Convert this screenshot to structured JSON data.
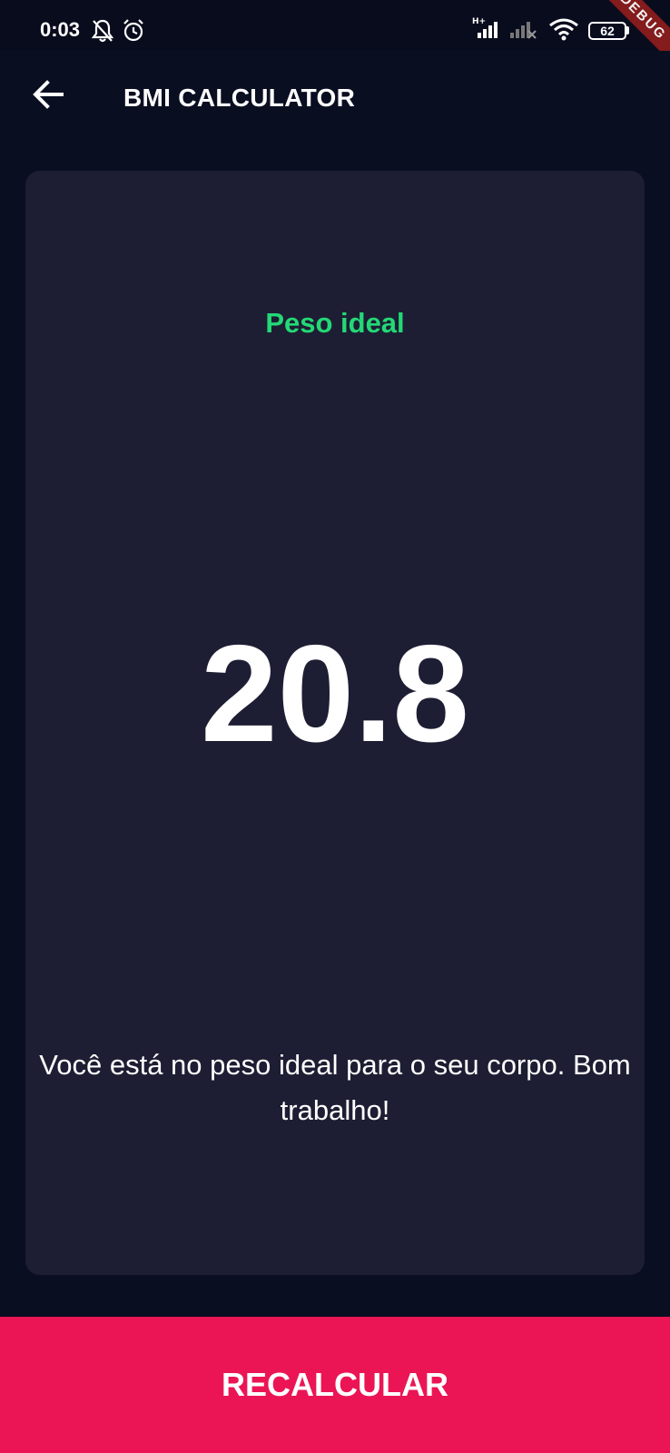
{
  "status_bar": {
    "time": "0:03",
    "battery_level": "62",
    "network_type": "H+",
    "icons": [
      "notifications-off-icon",
      "alarm-icon",
      "signal-icon",
      "signal-no-service-icon",
      "wifi-icon",
      "battery-icon"
    ]
  },
  "debug_banner": "DEBUG",
  "app_bar": {
    "title": "BMI CALCULATOR",
    "back_icon": "arrow-back-icon"
  },
  "result": {
    "status": "Peso ideal",
    "bmi": "20.8",
    "interpretation": "Você está no peso ideal para o seu corpo. Bom trabalho!"
  },
  "bottom_button": {
    "label": "RECALCULAR"
  },
  "colors": {
    "background": "#0a0e21",
    "card": "#1d1e33",
    "status_green": "#24d876",
    "accent": "#eb1555",
    "text": "#ffffff"
  }
}
